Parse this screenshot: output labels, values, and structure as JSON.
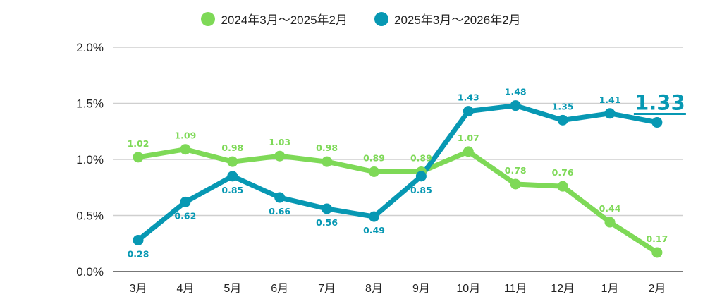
{
  "chart_data": {
    "type": "line",
    "title": "",
    "xlabel": "",
    "ylabel": "",
    "ylim": [
      0,
      2.0
    ],
    "grid": true,
    "legend_position": "top-center",
    "yticks": [
      "0.0%",
      "0.5%",
      "1.0%",
      "1.5%",
      "2.0%"
    ],
    "ytick_values": [
      0,
      0.5,
      1.0,
      1.5,
      2.0
    ],
    "categories": [
      "3月",
      "4月",
      "5月",
      "6月",
      "7月",
      "8月",
      "9月",
      "10月",
      "11月",
      "12月",
      "1月",
      "2月"
    ],
    "series": [
      {
        "name": "2024年3月～2025年2月",
        "color": "#7ed957",
        "values": [
          1.02,
          1.09,
          0.98,
          1.03,
          0.98,
          0.89,
          0.89,
          1.07,
          0.78,
          0.76,
          0.44,
          0.17
        ],
        "labels": [
          "1.02",
          "1.09",
          "0.98",
          "1.03",
          "0.98",
          "0.89",
          "0.89",
          "1.07",
          "0.78",
          "0.76",
          "0.44",
          "0.17"
        ],
        "label_side": [
          "above",
          "above",
          "above",
          "above",
          "above",
          "above",
          "above",
          "above",
          "above",
          "above",
          "above",
          "above"
        ]
      },
      {
        "name": "2025年3月～2026年2月",
        "color": "#0798b3",
        "values": [
          0.28,
          0.62,
          0.85,
          0.66,
          0.56,
          0.49,
          0.85,
          1.43,
          1.48,
          1.35,
          1.41,
          1.33
        ],
        "labels": [
          "0.28",
          "0.62",
          "0.85",
          "0.66",
          "0.56",
          "0.49",
          "0.85",
          "1.43",
          "1.48",
          "1.35",
          "1.41",
          "1.33"
        ],
        "label_side": [
          "below",
          "below",
          "below",
          "below",
          "below",
          "below",
          "below",
          "above",
          "above",
          "above",
          "above",
          "highlight"
        ]
      }
    ],
    "annotation": {
      "text": "1.33",
      "series": 1,
      "index": 11
    }
  }
}
